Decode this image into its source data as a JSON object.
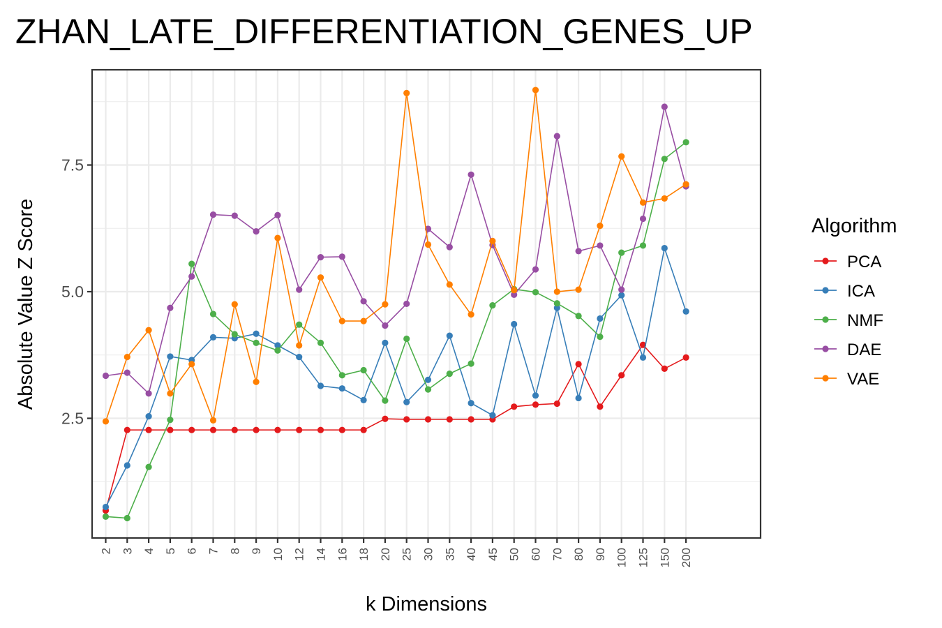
{
  "chart_data": {
    "type": "line",
    "title": "ZHAN_LATE_DIFFERENTIATION_GENES_UP",
    "xlabel": "k Dimensions",
    "ylabel": "Absolute Value Z Score",
    "x": [
      "2",
      "3",
      "4",
      "5",
      "6",
      "7",
      "8",
      "9",
      "10",
      "12",
      "14",
      "16",
      "18",
      "20",
      "25",
      "30",
      "35",
      "40",
      "45",
      "50",
      "60",
      "70",
      "80",
      "90",
      "100",
      "125",
      "150",
      "200"
    ],
    "x_scale": "categorical",
    "ylim": [
      0.3,
      9.3
    ],
    "yticks": [
      2.5,
      5.0,
      7.5
    ],
    "ytick_labels": [
      "2.5",
      "5.0",
      "7.5"
    ],
    "grid": true,
    "legend": {
      "title": "Algorithm",
      "position": "right"
    },
    "series": [
      {
        "name": "PCA",
        "color": "#e41a1c",
        "values": [
          0.68,
          2.27,
          2.27,
          2.27,
          2.27,
          2.27,
          2.27,
          2.27,
          2.27,
          2.27,
          2.27,
          2.27,
          2.27,
          2.49,
          2.48,
          2.48,
          2.48,
          2.48,
          2.48,
          2.73,
          2.77,
          2.79,
          3.57,
          2.73,
          3.35,
          3.95,
          3.48,
          3.7
        ]
      },
      {
        "name": "ICA",
        "color": "#377eb8",
        "values": [
          0.75,
          1.57,
          2.54,
          3.72,
          3.65,
          4.1,
          4.08,
          4.17,
          3.94,
          3.71,
          3.14,
          3.09,
          2.86,
          3.99,
          2.82,
          3.26,
          4.13,
          2.8,
          2.56,
          4.36,
          2.95,
          4.68,
          2.9,
          4.47,
          4.93,
          3.7,
          5.86,
          4.61
        ]
      },
      {
        "name": "NMF",
        "color": "#4daf4a",
        "values": [
          0.56,
          0.53,
          1.54,
          2.47,
          5.55,
          4.56,
          4.16,
          3.99,
          3.84,
          4.35,
          3.99,
          3.35,
          3.45,
          2.85,
          4.07,
          3.07,
          3.38,
          3.58,
          4.73,
          5.05,
          4.99,
          4.77,
          4.52,
          4.11,
          5.77,
          5.91,
          7.62,
          7.95
        ]
      },
      {
        "name": "DAE",
        "color": "#984ea3",
        "values": [
          3.34,
          3.4,
          2.99,
          4.68,
          5.3,
          6.52,
          6.5,
          6.19,
          6.51,
          5.04,
          5.68,
          5.69,
          4.81,
          4.33,
          4.76,
          6.24,
          5.88,
          7.31,
          5.92,
          4.94,
          5.44,
          8.07,
          5.8,
          5.91,
          5.04,
          6.44,
          8.65,
          7.08
        ]
      },
      {
        "name": "VAE",
        "color": "#ff7f00",
        "values": [
          2.44,
          3.71,
          4.24,
          2.99,
          3.57,
          2.46,
          4.75,
          3.22,
          6.06,
          3.94,
          5.28,
          4.42,
          4.42,
          4.75,
          8.92,
          5.93,
          5.14,
          4.55,
          6.0,
          5.03,
          8.98,
          5.0,
          5.04,
          6.3,
          7.67,
          6.76,
          6.84,
          7.12
        ]
      }
    ]
  }
}
